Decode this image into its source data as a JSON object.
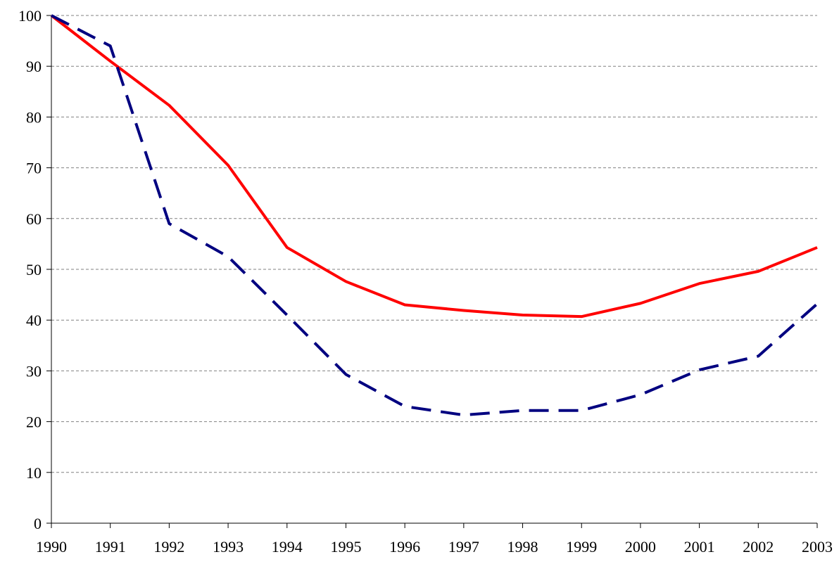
{
  "chart_data": {
    "type": "line",
    "categories": [
      "1990",
      "1991",
      "1992",
      "1993",
      "1994",
      "1995",
      "1996",
      "1997",
      "1998",
      "1999",
      "2000",
      "2001",
      "2002",
      "2003"
    ],
    "series": [
      {
        "color": "#ff0000",
        "dash": "solid",
        "values": [
          100,
          91,
          82.3,
          70.5,
          54.3,
          47.6,
          43,
          41.9,
          41,
          40.7,
          43.3,
          47.2,
          49.6,
          54.3
        ]
      },
      {
        "color": "#000080",
        "dash": "dashed",
        "values": [
          100,
          94,
          59,
          52.5,
          41,
          29.3,
          23,
          21.3,
          22.2,
          22.2,
          25.3,
          30.2,
          32.9,
          43.2
        ]
      }
    ],
    "ylim": [
      0,
      100
    ],
    "yticks": [
      0,
      10,
      20,
      30,
      40,
      50,
      60,
      70,
      80,
      90,
      100
    ],
    "grid": true
  }
}
